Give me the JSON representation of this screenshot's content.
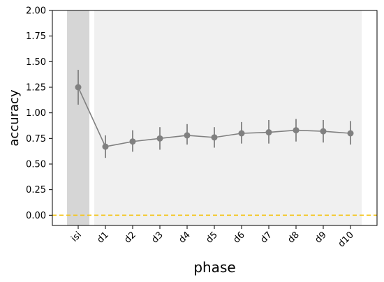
{
  "chart_data": {
    "type": "line",
    "title": "",
    "xlabel": "phase",
    "ylabel": "accuracy",
    "categories": [
      "isi",
      "d1",
      "d2",
      "d3",
      "d4",
      "d5",
      "d6",
      "d7",
      "d8",
      "d9",
      "d10"
    ],
    "series": [
      {
        "values": [
          1.25,
          0.67,
          0.72,
          0.75,
          0.78,
          0.76,
          0.8,
          0.81,
          0.83,
          0.82,
          0.8
        ],
        "error_low": [
          1.08,
          0.56,
          0.62,
          0.64,
          0.69,
          0.66,
          0.7,
          0.7,
          0.72,
          0.71,
          0.69
        ],
        "error_high": [
          1.42,
          0.78,
          0.83,
          0.86,
          0.89,
          0.86,
          0.91,
          0.93,
          0.94,
          0.93,
          0.92
        ],
        "color": "#808080"
      }
    ],
    "ylim": [
      -0.1,
      2.0
    ],
    "yticks": [
      "0.00",
      "0.25",
      "0.50",
      "0.75",
      "1.00",
      "1.25",
      "1.50",
      "1.75",
      "2.00"
    ],
    "reference_line": {
      "y": 0.0,
      "color": "#f5c518",
      "style": "dashed"
    },
    "shaded_regions": [
      {
        "from_category": "isi",
        "to_category": "isi",
        "color": "#d6d6d6"
      },
      {
        "from_category": "d1",
        "to_category": "d10",
        "color": "#f0f0f0"
      }
    ],
    "grid": false
  }
}
